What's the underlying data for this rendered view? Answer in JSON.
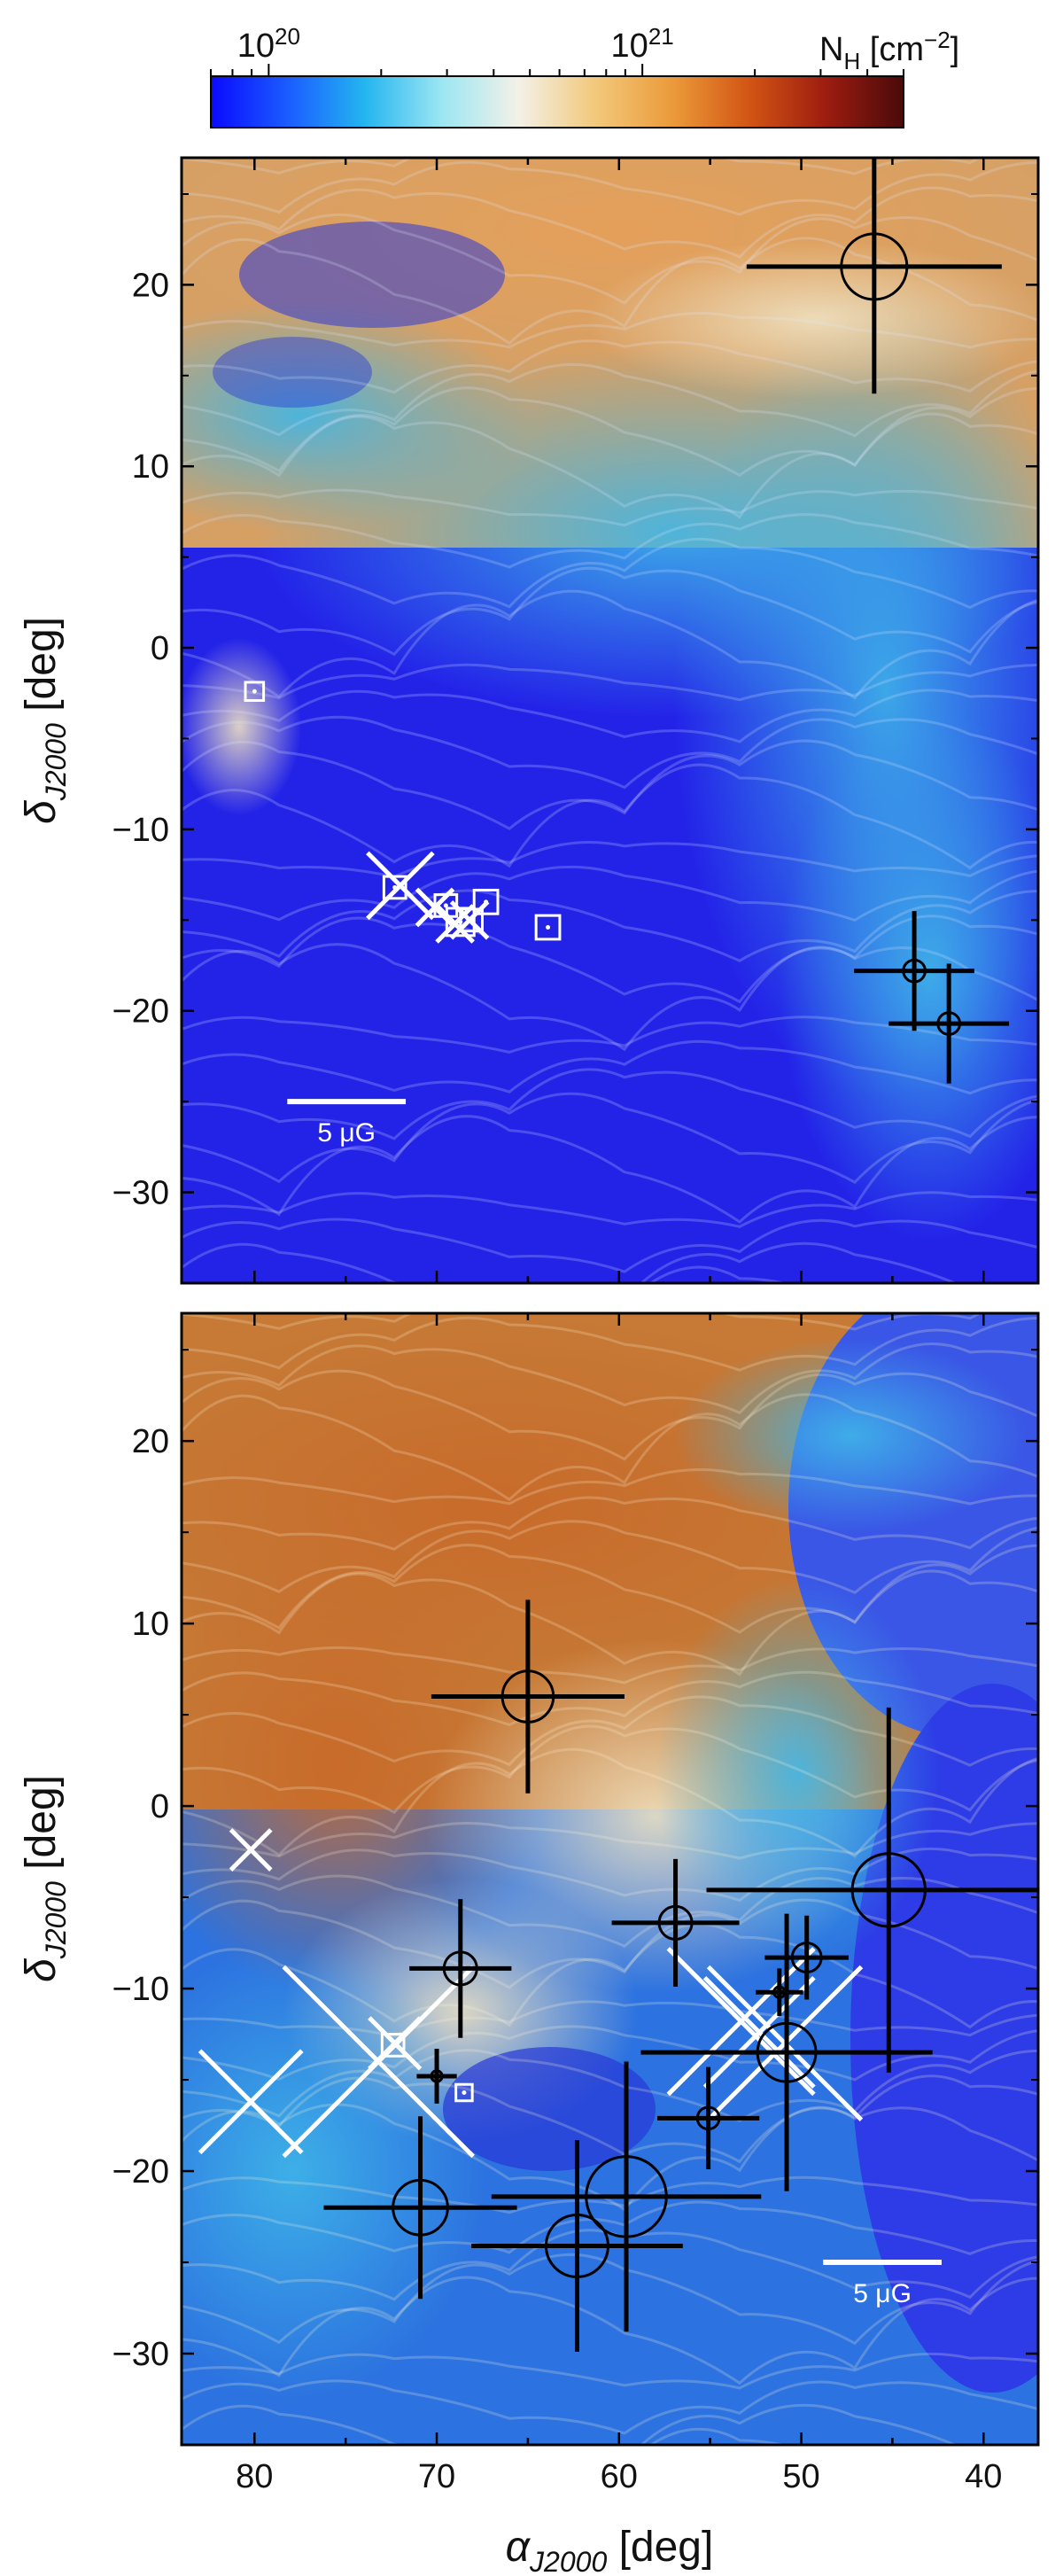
{
  "colorbar": {
    "label_main": "N",
    "label_sub": "H",
    "label_unit": " [cm",
    "label_exp": "−2",
    "label_close": "]",
    "tick_labels": [
      {
        "base": "10",
        "exp": "20",
        "value": 1e+20
      },
      {
        "base": "10",
        "exp": "21",
        "value": 1e+21
      }
    ],
    "range": [
      7e+19,
      5e+21
    ],
    "scale": "log",
    "stops": [
      "#0a0aff",
      "#1b5cff",
      "#24b5f0",
      "#9ce6f2",
      "#f3f1e8",
      "#f2c87a",
      "#eb9a3a",
      "#d25414",
      "#9c1c10",
      "#4a0a0a"
    ]
  },
  "axes_labels": {
    "y_main": "δ",
    "y_sub": "J2000",
    "y_unit": " [deg]",
    "x_main": "α",
    "x_sub": "J2000",
    "x_unit": " [deg]"
  },
  "scale_bar_label": "5 μG",
  "chart_data": [
    {
      "type": "scatter",
      "panel": "top",
      "xlim": [
        84,
        37
      ],
      "ylim": [
        -35,
        27
      ],
      "x_ticks": [],
      "y_ticks": [
        -30,
        -20,
        -10,
        0,
        10,
        20
      ],
      "y_tick_labels": [
        "−30",
        "−20",
        "−10",
        "0",
        "10",
        "20"
      ],
      "scale_bar": {
        "length_deg": 6.5,
        "x_start": 78.2,
        "y": -25
      },
      "black_crosses": [
        {
          "x": 46.0,
          "y": 21.0,
          "xerr": 7.0,
          "yerr": 7.0,
          "r": 1.8
        },
        {
          "x": 43.8,
          "y": -17.8,
          "xerr": 3.3,
          "yerr": 3.3,
          "r": 0.6
        },
        {
          "x": 41.9,
          "y": -20.7,
          "xerr": 3.3,
          "yerr": 3.3,
          "r": 0.6
        }
      ],
      "white_x_markers": [
        {
          "x": 72.0,
          "y": -13.1,
          "size": 1.8
        },
        {
          "x": 70.1,
          "y": -14.3,
          "size": 1.0
        },
        {
          "x": 69.0,
          "y": -15.2,
          "size": 1.0
        },
        {
          "x": 68.2,
          "y": -15.0,
          "size": 1.0
        }
      ],
      "white_squares": [
        {
          "x": 80.0,
          "y": -2.4,
          "size": 1.0
        },
        {
          "x": 72.3,
          "y": -13.2,
          "size": 1.2
        },
        {
          "x": 69.5,
          "y": -14.2,
          "size": 1.2
        },
        {
          "x": 67.3,
          "y": -14.0,
          "size": 1.3
        },
        {
          "x": 68.7,
          "y": -15.1,
          "size": 1.5
        },
        {
          "x": 68.1,
          "y": -15.0,
          "size": 1.2
        },
        {
          "x": 63.9,
          "y": -15.4,
          "size": 1.3
        }
      ]
    },
    {
      "type": "scatter",
      "panel": "bottom",
      "xlim": [
        84,
        37
      ],
      "ylim": [
        -35,
        27
      ],
      "x_ticks": [
        80,
        70,
        60,
        50,
        40
      ],
      "x_tick_labels": [
        "80",
        "70",
        "60",
        "50",
        "40"
      ],
      "y_ticks": [
        -30,
        -20,
        -10,
        0,
        10,
        20
      ],
      "y_tick_labels": [
        "−30",
        "−20",
        "−10",
        "0",
        "10",
        "20"
      ],
      "scale_bar": {
        "length_deg": 6.5,
        "x_start": 48.8,
        "y": -25
      },
      "black_crosses": [
        {
          "x": 65.0,
          "y": 6.0,
          "xerr": 5.3,
          "yerr": 5.3,
          "r": 1.4
        },
        {
          "x": 68.7,
          "y": -8.9,
          "xerr": 2.8,
          "yerr": 3.8,
          "r": 0.9
        },
        {
          "x": 70.0,
          "y": -14.8,
          "xerr": 1.1,
          "yerr": 1.5,
          "r": 0.3
        },
        {
          "x": 56.9,
          "y": -6.4,
          "xerr": 3.5,
          "yerr": 3.5,
          "r": 0.9
        },
        {
          "x": 51.2,
          "y": -10.2,
          "xerr": 1.3,
          "yerr": 1.3,
          "r": 0.3
        },
        {
          "x": 49.7,
          "y": -8.3,
          "xerr": 2.3,
          "yerr": 2.3,
          "r": 0.8
        },
        {
          "x": 45.2,
          "y": -4.6,
          "xerr": 10.0,
          "yerr": 10.0,
          "r": 2.0
        },
        {
          "x": 50.8,
          "y": -13.5,
          "xerr": 8.0,
          "yerr": 7.6,
          "r": 1.6
        },
        {
          "x": 55.1,
          "y": -17.1,
          "xerr": 2.8,
          "yerr": 2.8,
          "r": 0.6
        },
        {
          "x": 70.9,
          "y": -22.0,
          "xerr": 5.3,
          "yerr": 5.0,
          "r": 1.5
        },
        {
          "x": 59.6,
          "y": -21.4,
          "xerr": 7.4,
          "yerr": 7.4,
          "r": 2.2
        },
        {
          "x": 62.3,
          "y": -24.1,
          "xerr": 5.8,
          "yerr": 5.8,
          "r": 1.7
        }
      ],
      "white_x_markers": [
        {
          "x": 80.2,
          "y": -2.4,
          "size": 1.1
        },
        {
          "x": 80.2,
          "y": -16.2,
          "size": 2.8
        },
        {
          "x": 73.2,
          "y": -14.0,
          "size": 5.2
        },
        {
          "x": 72.3,
          "y": -13.0,
          "size": 1.4
        },
        {
          "x": 53.3,
          "y": -11.8,
          "size": 4.0
        },
        {
          "x": 52.3,
          "y": -12.4,
          "size": 3.0
        },
        {
          "x": 50.9,
          "y": -13.0,
          "size": 4.2
        }
      ],
      "white_squares": [
        {
          "x": 72.4,
          "y": -13.1,
          "size": 1.2
        },
        {
          "x": 68.5,
          "y": -15.7,
          "size": 0.9
        }
      ]
    }
  ]
}
